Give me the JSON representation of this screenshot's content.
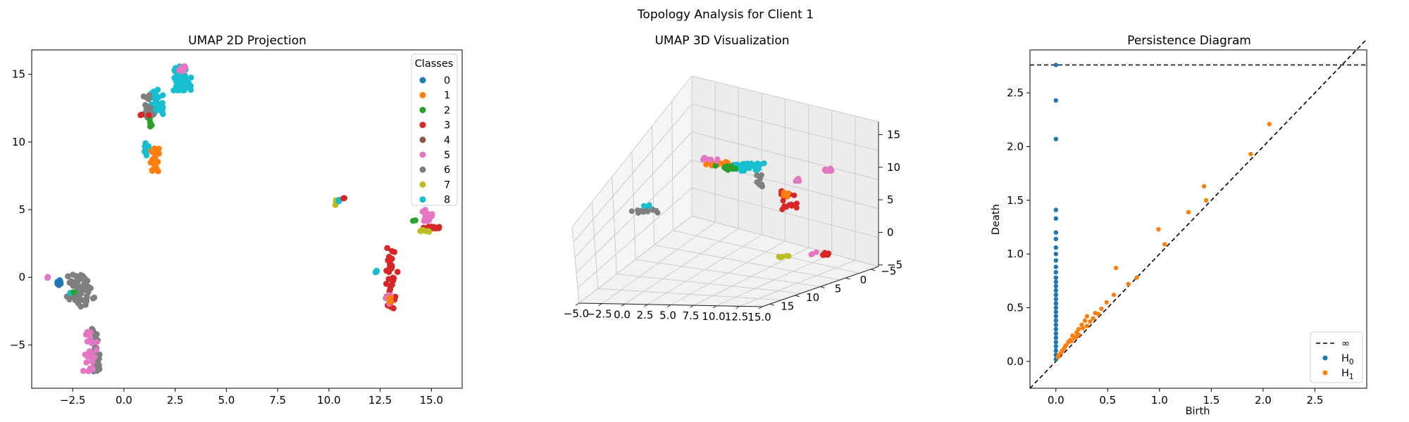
{
  "suptitle": "Topology Analysis for Client 1",
  "colors": {
    "c0": "#1f77b4",
    "c1": "#ff7f0e",
    "c2": "#2ca02c",
    "c3": "#d62728",
    "c4": "#8c564b",
    "c5": "#e377c2",
    "c6": "#7f7f7f",
    "c7": "#bcbd22",
    "c8": "#17becf",
    "pane": "#f2f2f2",
    "grid": "#cccccc"
  },
  "chart_data": [
    {
      "type": "scatter",
      "title": "UMAP 2D Projection",
      "xlabel": "",
      "ylabel": "",
      "xlim": [
        -4.5,
        16.5
      ],
      "ylim": [
        -8.2,
        16.8
      ],
      "xticks": [
        -2.5,
        0.0,
        2.5,
        5.0,
        7.5,
        10.0,
        12.5,
        15.0
      ],
      "xtick_labels": [
        "−2.5",
        "0.0",
        "2.5",
        "5.0",
        "7.5",
        "10.0",
        "12.5",
        "15.0"
      ],
      "yticks": [
        -5,
        0,
        5,
        10,
        15
      ],
      "ytick_labels": [
        "−5",
        "0",
        "5",
        "10",
        "15"
      ],
      "legend": {
        "title": "Classes",
        "placement": "top-right",
        "entries": [
          "0",
          "1",
          "2",
          "3",
          "4",
          "5",
          "6",
          "7",
          "8"
        ]
      },
      "clusters": [
        {
          "class": 8,
          "x": [
            2.1,
            3.5
          ],
          "y": [
            13.8,
            15.6
          ],
          "n": 70
        },
        {
          "class": 5,
          "x": [
            2.6,
            3.1
          ],
          "y": [
            15.2,
            15.7
          ],
          "n": 8
        },
        {
          "class": 8,
          "x": [
            1.0,
            2.2
          ],
          "y": [
            12.0,
            13.9
          ],
          "n": 30
        },
        {
          "class": 6,
          "x": [
            0.8,
            1.6
          ],
          "y": [
            11.5,
            13.5
          ],
          "n": 16
        },
        {
          "class": 2,
          "x": [
            1.0,
            1.5
          ],
          "y": [
            11.0,
            12.3
          ],
          "n": 5
        },
        {
          "class": 3,
          "x": [
            0.8,
            1.3
          ],
          "y": [
            11.8,
            12.2
          ],
          "n": 3
        },
        {
          "class": 1,
          "x": [
            1.1,
            1.9
          ],
          "y": [
            7.8,
            9.6
          ],
          "n": 30
        },
        {
          "class": 8,
          "x": [
            0.9,
            1.3
          ],
          "y": [
            9.0,
            10.0
          ],
          "n": 8
        },
        {
          "class": 7,
          "x": [
            10.1,
            10.5
          ],
          "y": [
            5.3,
            5.7
          ],
          "n": 4
        },
        {
          "class": 8,
          "x": [
            10.4,
            10.6
          ],
          "y": [
            5.6,
            5.8
          ],
          "n": 3
        },
        {
          "class": 3,
          "x": [
            10.7,
            10.8
          ],
          "y": [
            5.8,
            5.9
          ],
          "n": 2
        },
        {
          "class": 5,
          "x": [
            14.3,
            15.2
          ],
          "y": [
            4.1,
            5.0
          ],
          "n": 18
        },
        {
          "class": 3,
          "x": [
            14.6,
            15.4
          ],
          "y": [
            3.5,
            3.9
          ],
          "n": 12
        },
        {
          "class": 7,
          "x": [
            14.4,
            14.9
          ],
          "y": [
            3.3,
            3.6
          ],
          "n": 6
        },
        {
          "class": 2,
          "x": [
            14.1,
            14.3
          ],
          "y": [
            4.1,
            4.3
          ],
          "n": 2
        },
        {
          "class": 3,
          "x": [
            12.6,
            13.5
          ],
          "y": [
            -2.4,
            2.3
          ],
          "n": 40
        },
        {
          "class": 5,
          "x": [
            12.7,
            13.1
          ],
          "y": [
            -2.3,
            -1.2
          ],
          "n": 6
        },
        {
          "class": 1,
          "x": [
            12.8,
            13.1
          ],
          "y": [
            -1.9,
            -1.5
          ],
          "n": 4
        },
        {
          "class": 8,
          "x": [
            12.1,
            12.4
          ],
          "y": [
            0.3,
            0.6
          ],
          "n": 4
        },
        {
          "class": 0,
          "x": [
            -3.3,
            -3.0
          ],
          "y": [
            -0.6,
            -0.2
          ],
          "n": 6
        },
        {
          "class": 5,
          "x": [
            -3.8,
            -3.6
          ],
          "y": [
            -0.1,
            0.1
          ],
          "n": 3
        },
        {
          "class": 6,
          "x": [
            -3.1,
            -1.0
          ],
          "y": [
            -2.2,
            0.2
          ],
          "n": 60
        },
        {
          "class": 6,
          "x": [
            -1.7,
            -1.0
          ],
          "y": [
            -7.0,
            -3.8
          ],
          "n": 30
        },
        {
          "class": 5,
          "x": [
            -2.3,
            -1.0
          ],
          "y": [
            -7.0,
            -4.0
          ],
          "n": 24
        },
        {
          "class": 8,
          "x": [
            -2.8,
            -2.4
          ],
          "y": [
            -1.3,
            -1.0
          ],
          "n": 3
        },
        {
          "class": 2,
          "x": [
            -2.6,
            -2.3
          ],
          "y": [
            -1.4,
            -1.0
          ],
          "n": 2
        }
      ]
    },
    {
      "type": "scatter",
      "title": "UMAP 3D Visualization",
      "xlabel": "",
      "ylabel": "",
      "zlabel": "",
      "xticks": [
        "−5.0",
        "−2.5",
        "0.0",
        "2.5",
        "5.0",
        "7.5",
        "10.0",
        "12.5",
        "15.0"
      ],
      "yticks": [
        "−5",
        "0",
        "5",
        "10",
        "15"
      ],
      "zticks": [
        "−5",
        "0",
        "5",
        "10",
        "15"
      ],
      "clusters": [
        {
          "class": 8,
          "u": [
            0.5,
            0.62
          ],
          "v": [
            0.2,
            0.28
          ],
          "n": 40
        },
        {
          "class": 1,
          "u": [
            0.39,
            0.49
          ],
          "v": [
            0.2,
            0.24
          ],
          "n": 14
        },
        {
          "class": 2,
          "u": [
            0.43,
            0.52
          ],
          "v": [
            0.22,
            0.27
          ],
          "n": 10
        },
        {
          "class": 5,
          "u": [
            0.36,
            0.45
          ],
          "v": [
            0.17,
            0.22
          ],
          "n": 8
        },
        {
          "class": 6,
          "u": [
            0.58,
            0.62
          ],
          "v": [
            0.28,
            0.38
          ],
          "n": 8
        },
        {
          "class": 5,
          "u": [
            0.84,
            0.87
          ],
          "v": [
            0.24,
            0.27
          ],
          "n": 8
        },
        {
          "class": 3,
          "u": [
            0.68,
            0.74
          ],
          "v": [
            0.38,
            0.52
          ],
          "n": 18
        },
        {
          "class": 5,
          "u": [
            0.71,
            0.76
          ],
          "v": [
            0.3,
            0.33
          ],
          "n": 5
        },
        {
          "class": 1,
          "u": [
            0.69,
            0.71
          ],
          "v": [
            0.38,
            0.42
          ],
          "n": 4
        },
        {
          "class": 6,
          "u": [
            0.12,
            0.22
          ],
          "v": [
            0.48,
            0.52
          ],
          "n": 12
        },
        {
          "class": 8,
          "u": [
            0.16,
            0.19
          ],
          "v": [
            0.46,
            0.48
          ],
          "n": 3
        },
        {
          "class": 7,
          "u": [
            0.65,
            0.71
          ],
          "v": [
            0.76,
            0.78
          ],
          "n": 5
        },
        {
          "class": 3,
          "u": [
            0.82,
            0.86
          ],
          "v": [
            0.74,
            0.77
          ],
          "n": 6
        },
        {
          "class": 5,
          "u": [
            0.79,
            0.82
          ],
          "v": [
            0.73,
            0.76
          ],
          "n": 3
        }
      ]
    },
    {
      "type": "scatter",
      "title": "Persistence Diagram",
      "xlabel": "Birth",
      "ylabel": "Death",
      "xlim": [
        -0.25,
        3.0
      ],
      "ylim": [
        -0.25,
        2.9
      ],
      "xticks": [
        0.0,
        0.5,
        1.0,
        1.5,
        2.0,
        2.5
      ],
      "xtick_labels": [
        "0.0",
        "0.5",
        "1.0",
        "1.5",
        "2.0",
        "2.5"
      ],
      "yticks": [
        0.0,
        0.5,
        1.0,
        1.5,
        2.0,
        2.5
      ],
      "ytick_labels": [
        "0.0",
        "0.5",
        "1.0",
        "1.5",
        "2.0",
        "2.5"
      ],
      "infinity_line": 2.76,
      "legend": {
        "placement": "bottom-right",
        "entries": [
          {
            "label": "∞",
            "kind": "dashed"
          },
          {
            "label": "H",
            "sub": "0",
            "kind": "dot",
            "class": 0
          },
          {
            "label": "H",
            "sub": "1",
            "kind": "dot",
            "class": 1
          }
        ]
      },
      "series": [
        {
          "name": "H0",
          "points": [
            [
              0,
              2.76
            ],
            [
              0,
              2.43
            ],
            [
              0,
              2.07
            ],
            [
              0,
              1.41
            ],
            [
              0,
              1.33
            ],
            [
              0,
              1.2
            ],
            [
              0,
              1.14
            ],
            [
              0,
              1.06
            ],
            [
              0,
              1.0
            ],
            [
              0,
              0.94
            ],
            [
              0,
              0.88
            ],
            [
              0,
              0.83
            ],
            [
              0,
              0.78
            ],
            [
              0,
              0.74
            ],
            [
              0,
              0.7
            ],
            [
              0,
              0.66
            ],
            [
              0,
              0.62
            ],
            [
              0,
              0.58
            ],
            [
              0,
              0.54
            ],
            [
              0,
              0.5
            ],
            [
              0,
              0.46
            ],
            [
              0,
              0.42
            ],
            [
              0,
              0.38
            ],
            [
              0,
              0.34
            ],
            [
              0,
              0.3
            ],
            [
              0,
              0.26
            ],
            [
              0,
              0.22
            ],
            [
              0,
              0.18
            ],
            [
              0,
              0.14
            ],
            [
              0,
              0.1
            ],
            [
              0,
              0.06
            ],
            [
              0,
              0.02
            ]
          ]
        },
        {
          "name": "H1",
          "points": [
            [
              2.06,
              2.21
            ],
            [
              1.88,
              1.93
            ],
            [
              1.43,
              1.63
            ],
            [
              1.45,
              1.5
            ],
            [
              1.28,
              1.39
            ],
            [
              0.99,
              1.23
            ],
            [
              1.05,
              1.09
            ],
            [
              0.58,
              0.87
            ],
            [
              0.78,
              0.78
            ],
            [
              0.7,
              0.72
            ],
            [
              0.56,
              0.62
            ],
            [
              0.49,
              0.55
            ],
            [
              0.44,
              0.49
            ],
            [
              0.38,
              0.45
            ],
            [
              0.3,
              0.42
            ],
            [
              0.28,
              0.38
            ],
            [
              0.25,
              0.34
            ],
            [
              0.3,
              0.33
            ],
            [
              0.22,
              0.3
            ],
            [
              0.26,
              0.31
            ],
            [
              0.2,
              0.27
            ],
            [
              0.16,
              0.24
            ],
            [
              0.18,
              0.22
            ],
            [
              0.14,
              0.2
            ],
            [
              0.12,
              0.18
            ],
            [
              0.15,
              0.19
            ],
            [
              0.1,
              0.15
            ],
            [
              0.08,
              0.12
            ],
            [
              0.06,
              0.1
            ],
            [
              0.05,
              0.08
            ],
            [
              0.03,
              0.06
            ],
            [
              0.02,
              0.04
            ],
            [
              0.33,
              0.37
            ],
            [
              0.22,
              0.25
            ],
            [
              0.09,
              0.14
            ],
            [
              0.2,
              0.23
            ],
            [
              0.36,
              0.4
            ],
            [
              0.41,
              0.44
            ]
          ]
        }
      ]
    }
  ]
}
